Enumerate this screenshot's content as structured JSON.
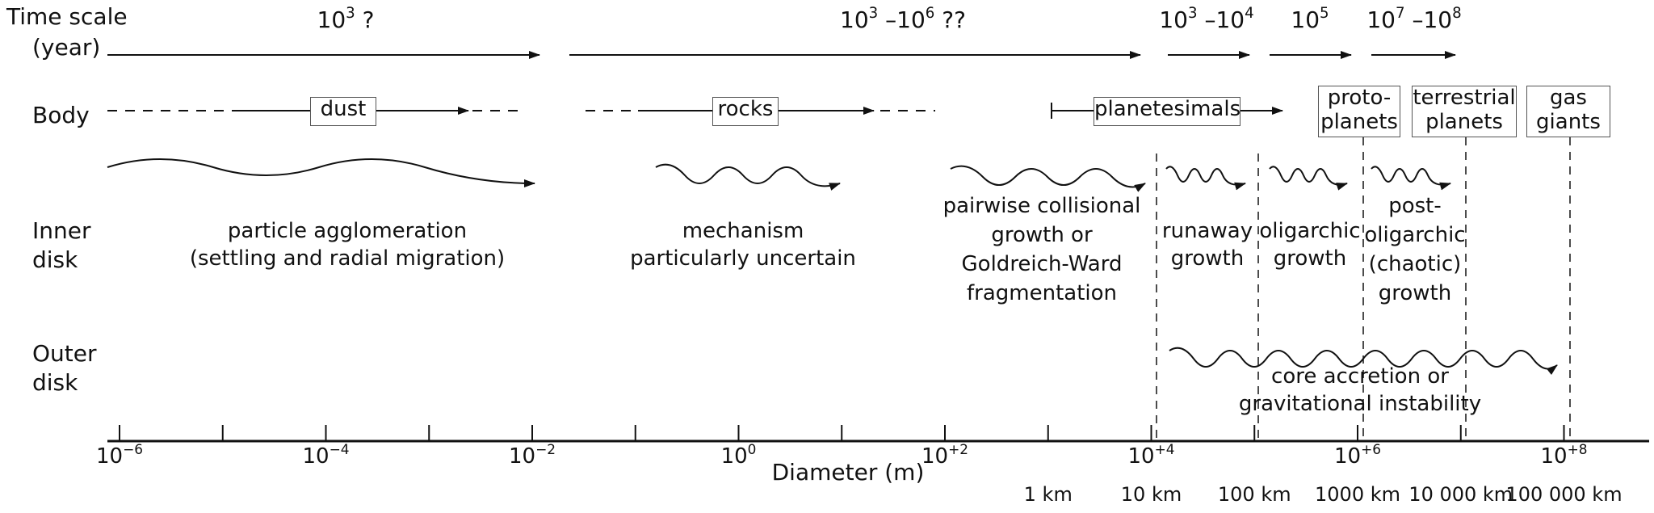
{
  "row_labels": {
    "time_scale": [
      "Time scale",
      "(year)"
    ],
    "body": "Body",
    "inner_disk": [
      "Inner",
      "disk"
    ],
    "outer_disk": [
      "Outer",
      "disk"
    ]
  },
  "time_scales": [
    {
      "base": "10",
      "exp": "3",
      "suffix": " ?"
    },
    {
      "base": "10",
      "exp": "3",
      "mid": " –10",
      "exp2": "6",
      "suffix": " ??"
    },
    {
      "base": "10",
      "exp": "3",
      "mid": " –10",
      "exp2": "4",
      "suffix": ""
    },
    {
      "base": "10",
      "exp": "5",
      "suffix": ""
    },
    {
      "base": "10",
      "exp": "7",
      "mid": " –10",
      "exp2": "8",
      "suffix": ""
    }
  ],
  "bodies": {
    "dust": "dust",
    "rocks": "rocks",
    "planetesimals": "planetesimals",
    "protoplanets": [
      "proto-",
      "planets"
    ],
    "terrestrial": [
      "terrestrial",
      "planets"
    ],
    "gas_giants": [
      "gas",
      "giants"
    ]
  },
  "inner_disk": {
    "agglomeration": [
      "particle agglomeration",
      "(settling and radial migration)"
    ],
    "uncertain": [
      "mechanism",
      "particularly uncertain"
    ],
    "pairwise": [
      "pairwise collisional",
      "growth or",
      "Goldreich-Ward",
      "fragmentation"
    ],
    "runaway": [
      "runaway",
      "growth"
    ],
    "oligarchic": [
      "oligarchic",
      "growth"
    ],
    "post_oligarchic": [
      "post-",
      "oligarchic",
      "(chaotic)",
      "growth"
    ]
  },
  "outer_disk": {
    "core_accretion": [
      "core accretion or",
      "gravitational instability"
    ]
  },
  "axis": {
    "title": "Diameter (m)",
    "tick_labels": [
      {
        "base": "10",
        "exp": "−6"
      },
      {
        "base": "10",
        "exp": "−4"
      },
      {
        "base": "10",
        "exp": "−2"
      },
      {
        "base": "10",
        "exp": "0"
      },
      {
        "base": "10",
        "exp": "+2"
      },
      {
        "base": "10",
        "exp": "+4"
      },
      {
        "base": "10",
        "exp": "+6"
      },
      {
        "base": "10",
        "exp": "+8"
      }
    ],
    "km_labels": [
      "1 km",
      "10 km",
      "100 km",
      "1000 km",
      "10 000 km",
      "100 000 km"
    ]
  }
}
